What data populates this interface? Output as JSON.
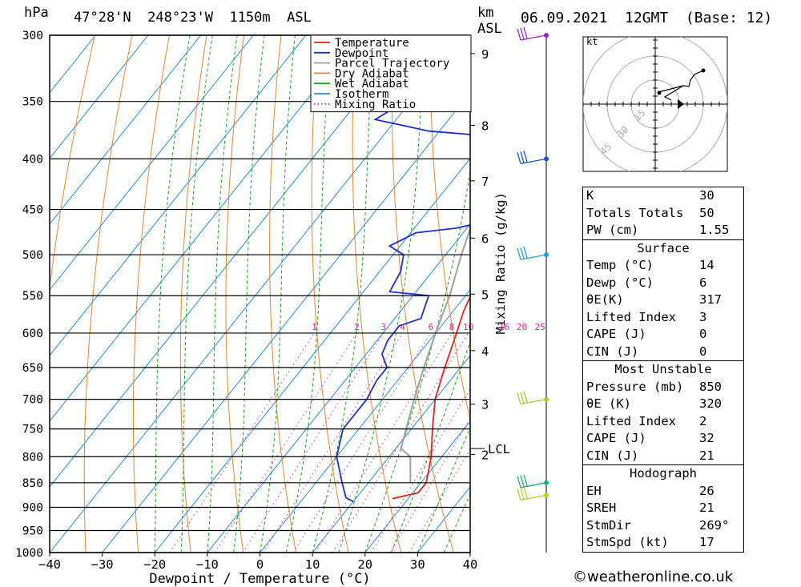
{
  "header": {
    "pressure_unit": "hPa",
    "location": "47°28'N  248°23'W  1150m  ASL",
    "height_unit_1": "km",
    "height_unit_2": "ASL",
    "datetime": "06.09.2021  12GMT  (Base: 12)"
  },
  "chart_data": {
    "type": "line",
    "title": "47°28'N  248°23'W  1150m  ASL",
    "xlabel": "Dewpoint / Temperature (°C)",
    "ylabel": "hPa",
    "x_ticks": [
      -40,
      -30,
      -20,
      -10,
      0,
      10,
      20,
      30,
      40
    ],
    "xlim": [
      -40,
      40
    ],
    "pressure_levels": [
      300,
      350,
      400,
      450,
      500,
      550,
      600,
      650,
      700,
      750,
      800,
      850,
      900,
      950,
      1000
    ],
    "ylim": [
      1000,
      300
    ],
    "km_ticks": [
      {
        "label": "9",
        "p": 313
      },
      {
        "label": "8",
        "p": 370
      },
      {
        "label": "7",
        "p": 421
      },
      {
        "label": "6",
        "p": 481
      },
      {
        "label": "5",
        "p": 548
      },
      {
        "label": "4",
        "p": 625
      },
      {
        "label": "3",
        "p": 708
      },
      {
        "label": "2",
        "p": 796
      }
    ],
    "lcl": {
      "label": "LCL",
      "p": 785
    },
    "mixing_ratio_label": "Mixing Ratio (g/kg)",
    "mixing_ratios": [
      "1",
      "2",
      "3",
      "4",
      "6",
      "8",
      "10",
      "16",
      "20",
      "25"
    ],
    "legend_position": "top-right",
    "series": [
      {
        "name": "Temperature",
        "color": "#e8201c",
        "points": [
          [
            17,
            882
          ],
          [
            21,
            870
          ],
          [
            21,
            850
          ],
          [
            18,
            800
          ],
          [
            14,
            750
          ],
          [
            10,
            700
          ],
          [
            7,
            650
          ],
          [
            4,
            600
          ],
          [
            2,
            570
          ],
          [
            1,
            550
          ],
          [
            0,
            530
          ],
          [
            -2,
            500
          ],
          [
            -5,
            475
          ],
          [
            -5,
            460
          ],
          [
            -7,
            450
          ],
          [
            -9,
            420
          ],
          [
            -11,
            410
          ],
          [
            -14,
            390
          ],
          [
            -17,
            380
          ],
          [
            -16,
            370
          ],
          [
            -16,
            360
          ],
          [
            -19,
            340
          ],
          [
            -24,
            320
          ],
          [
            -28,
            300
          ]
        ]
      },
      {
        "name": "Dewpoint",
        "color": "#1c2fd8",
        "points": [
          [
            10,
            888
          ],
          [
            8,
            880
          ],
          [
            5,
            850
          ],
          [
            0,
            800
          ],
          [
            -3,
            750
          ],
          [
            -3,
            700
          ],
          [
            -4,
            670
          ],
          [
            -4,
            650
          ],
          [
            -7,
            630
          ],
          [
            -8,
            610
          ],
          [
            -8,
            590
          ],
          [
            -5,
            580
          ],
          [
            -7,
            550
          ],
          [
            -15,
            545
          ],
          [
            -16,
            520
          ],
          [
            -18,
            500
          ],
          [
            -22,
            490
          ],
          [
            -20,
            480
          ],
          [
            -19,
            475
          ],
          [
            -12,
            470
          ],
          [
            -7,
            462
          ],
          [
            -11,
            455
          ],
          [
            -12,
            440
          ],
          [
            -14,
            420
          ],
          [
            -18,
            400
          ],
          [
            -18,
            380
          ],
          [
            -32,
            375
          ],
          [
            -44,
            365
          ],
          [
            -36,
            325
          ],
          [
            -33,
            310
          ],
          [
            -31,
            300
          ]
        ]
      },
      {
        "name": "Parcel Trajectory",
        "color": "#a0a0a0",
        "points": [
          [
            18,
            850
          ],
          [
            14,
            800
          ],
          [
            11,
            785
          ],
          [
            9,
            750
          ],
          [
            6,
            700
          ],
          [
            3,
            650
          ],
          [
            0,
            600
          ],
          [
            -3,
            550
          ],
          [
            -7,
            500
          ],
          [
            -11,
            450
          ],
          [
            -16,
            400
          ],
          [
            -22,
            350
          ],
          [
            -30,
            300
          ]
        ]
      },
      {
        "name": "Dry Adiabat",
        "color": "#e8862a"
      },
      {
        "name": "Wet Adiabat",
        "color": "#1aa51a"
      },
      {
        "name": "Isotherm",
        "color": "#1a8fe0"
      },
      {
        "name": "Mixing Ratio",
        "color": "#e0209a"
      }
    ]
  },
  "wind_profile": [
    {
      "p": 300,
      "color": "#9b1fd6"
    },
    {
      "p": 400,
      "color": "#1a4fd8"
    },
    {
      "p": 500,
      "color": "#1aa0e0"
    },
    {
      "p": 700,
      "color": "#9ad420"
    },
    {
      "p": 850,
      "color": "#1ab07a"
    },
    {
      "p": 875,
      "color": "#b0d420"
    }
  ],
  "hodograph": {
    "unit_label": "kt",
    "ring_labels": [
      "15",
      "30",
      "45"
    ]
  },
  "indices": [
    {
      "type": "row",
      "key": "K",
      "value": "30"
    },
    {
      "type": "row",
      "key": "Totals Totals",
      "value": "50"
    },
    {
      "type": "row",
      "key": "PW (cm)",
      "value": "1.55"
    },
    {
      "type": "section",
      "title": "Surface"
    },
    {
      "type": "row",
      "key": "Temp (°C)",
      "value": "14"
    },
    {
      "type": "row",
      "key": "Dewp (°C)",
      "value": "6"
    },
    {
      "type": "row",
      "key": "θE(K)",
      "value": "317"
    },
    {
      "type": "row",
      "key": "Lifted Index",
      "value": "3"
    },
    {
      "type": "row",
      "key": "CAPE (J)",
      "value": "0"
    },
    {
      "type": "row",
      "key": "CIN (J)",
      "value": "0"
    },
    {
      "type": "section",
      "title": "Most Unstable"
    },
    {
      "type": "row",
      "key": "Pressure (mb)",
      "value": "850"
    },
    {
      "type": "row",
      "key": "θE (K)",
      "value": "320"
    },
    {
      "type": "row",
      "key": "Lifted Index",
      "value": "2"
    },
    {
      "type": "row",
      "key": "CAPE (J)",
      "value": "32"
    },
    {
      "type": "row",
      "key": "CIN (J)",
      "value": "21"
    },
    {
      "type": "section",
      "title": "Hodograph"
    },
    {
      "type": "row",
      "key": "EH",
      "value": "26"
    },
    {
      "type": "row",
      "key": "SREH",
      "value": "21"
    },
    {
      "type": "row",
      "key": "StmDir",
      "value": "269°"
    },
    {
      "type": "row",
      "key": "StmSpd (kt)",
      "value": "17"
    }
  ],
  "footer": "©weatheronline.co.uk"
}
